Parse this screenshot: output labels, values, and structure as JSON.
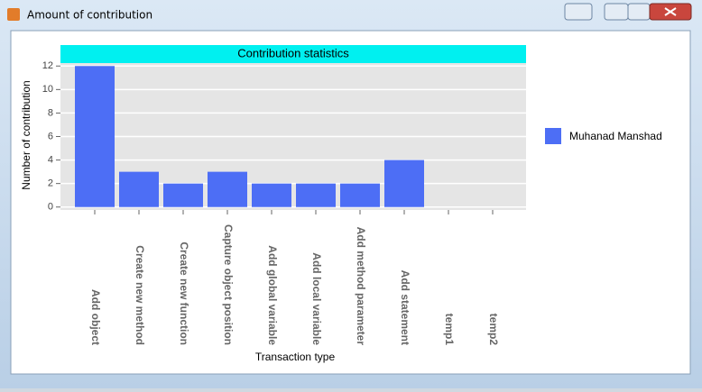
{
  "window": {
    "title": "Amount of contribution"
  },
  "chart_data": {
    "type": "bar",
    "title": "Contribution statistics",
    "x_label": "Transaction type",
    "y_label": "Number of contribution",
    "categories": [
      "Add object",
      "Create new method",
      "Create new function",
      "Capture object position",
      "Add global variable",
      "Add local variable",
      "Add method parameter",
      "Add statement",
      "temp1",
      "temp2"
    ],
    "series": [
      {
        "name": "Muhanad Manshad",
        "color": "#4d6ef5",
        "values": [
          12,
          3,
          2,
          3,
          2,
          2,
          2,
          4,
          0,
          0
        ]
      }
    ],
    "ylim": [
      -0.25,
      12.25
    ],
    "yticks": [
      0,
      2,
      4,
      6,
      8,
      10,
      12
    ],
    "grid": true,
    "legend": "right"
  }
}
